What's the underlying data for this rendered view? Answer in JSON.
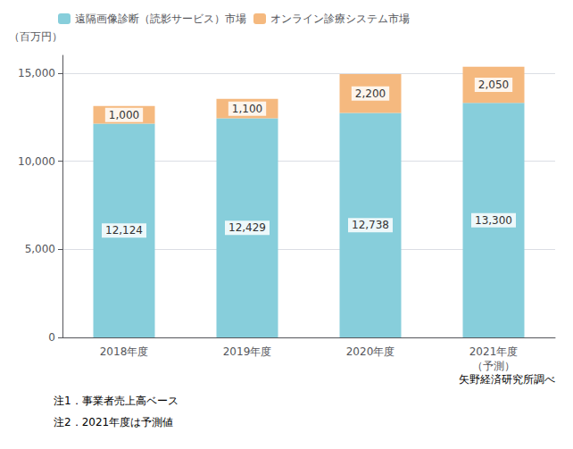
{
  "chart_data": {
    "type": "bar",
    "stacked": true,
    "categories": [
      "2018年度",
      "2019年度",
      "2020年度",
      "2021年度\n（予測）"
    ],
    "series": [
      {
        "name": "遠隔画像診断（読影サービス）市場",
        "color": "#87CEDB",
        "values": [
          12124,
          12429,
          12738,
          13300
        ],
        "value_labels": [
          "12,124",
          "12,429",
          "12,738",
          "13,300"
        ]
      },
      {
        "name": "オンライン診療システム市場",
        "color": "#F5B97F",
        "values": [
          1000,
          1100,
          2200,
          2050
        ],
        "value_labels": [
          "1,000",
          "1,100",
          "2,200",
          "2,050"
        ]
      }
    ],
    "ylabel": "（百万円）",
    "ylim": [
      0,
      16000
    ],
    "yticks": [
      0,
      {
        "value": 5000,
        "label": "5,000"
      },
      {
        "value": 10000,
        "label": "10,000"
      },
      {
        "value": 15000,
        "label": "15,000"
      }
    ],
    "grid": true,
    "legend": "upper left",
    "data_labels": true,
    "annotations": [
      "注1．事業者売上高ベース",
      "注2．2021年度は予測値",
      "矢野経済研究所調べ"
    ]
  }
}
